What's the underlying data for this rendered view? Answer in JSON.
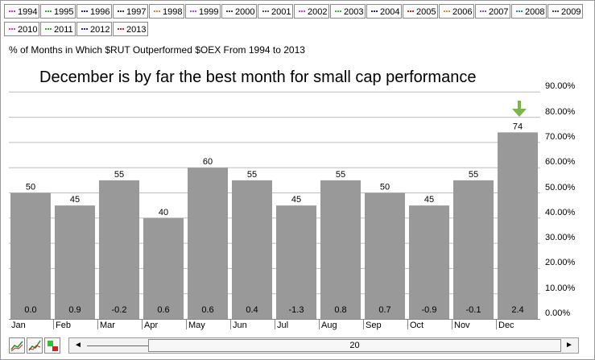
{
  "legend": {
    "items": [
      {
        "label": "1994",
        "color": "#cc33cc"
      },
      {
        "label": "1995",
        "color": "#33aa33"
      },
      {
        "label": "1996",
        "color": "#222288"
      },
      {
        "label": "1997",
        "color": "#333333"
      },
      {
        "label": "1998",
        "color": "#dd8833"
      },
      {
        "label": "1999",
        "color": "#aa55cc"
      },
      {
        "label": "2000",
        "color": "#444444"
      },
      {
        "label": "2001",
        "color": "#555555"
      },
      {
        "label": "2002",
        "color": "#cc44cc"
      },
      {
        "label": "2003",
        "color": "#33bb33"
      },
      {
        "label": "2004",
        "color": "#222266"
      },
      {
        "label": "2005",
        "color": "#cc2222"
      },
      {
        "label": "2006",
        "color": "#ee8833"
      },
      {
        "label": "2007",
        "color": "#8855cc"
      },
      {
        "label": "2008",
        "color": "#228899"
      },
      {
        "label": "2009",
        "color": "#444444"
      },
      {
        "label": "2010",
        "color": "#cc44cc"
      },
      {
        "label": "2011",
        "color": "#33aa33"
      },
      {
        "label": "2012",
        "color": "#2222aa"
      },
      {
        "label": "2013",
        "color": "#cc2222"
      }
    ]
  },
  "subtitle": "% of Months in Which $RUT Outperformed $OEX From 1994 to 2013",
  "annotation": "December is by far the best month for small cap performance",
  "chart_data": {
    "type": "bar",
    "categories": [
      "Jan",
      "Feb",
      "Mar",
      "Apr",
      "May",
      "Jun",
      "Jul",
      "Aug",
      "Sep",
      "Oct",
      "Nov",
      "Dec"
    ],
    "values": [
      50,
      45,
      55,
      40,
      60,
      55,
      45,
      55,
      50,
      45,
      55,
      74
    ],
    "bottom_labels": [
      "0.0",
      "0.9",
      "-0.2",
      "0.6",
      "0.6",
      "0.4",
      "-1.3",
      "0.8",
      "0.7",
      "-0.9",
      "-0.1",
      "2.4"
    ],
    "y_ticks": [
      "0.00%",
      "10.00%",
      "20.00%",
      "30.00%",
      "40.00%",
      "50.00%",
      "60.00%",
      "70.00%",
      "80.00%",
      "90.00%"
    ],
    "ylim": [
      0,
      100
    ],
    "bar_color": "#999999",
    "arrow_color": "#7ab648",
    "highlight": "Dec",
    "grid": true
  },
  "scrollbar": {
    "left_arrow": "◄",
    "right_arrow": "►",
    "value": "20"
  }
}
